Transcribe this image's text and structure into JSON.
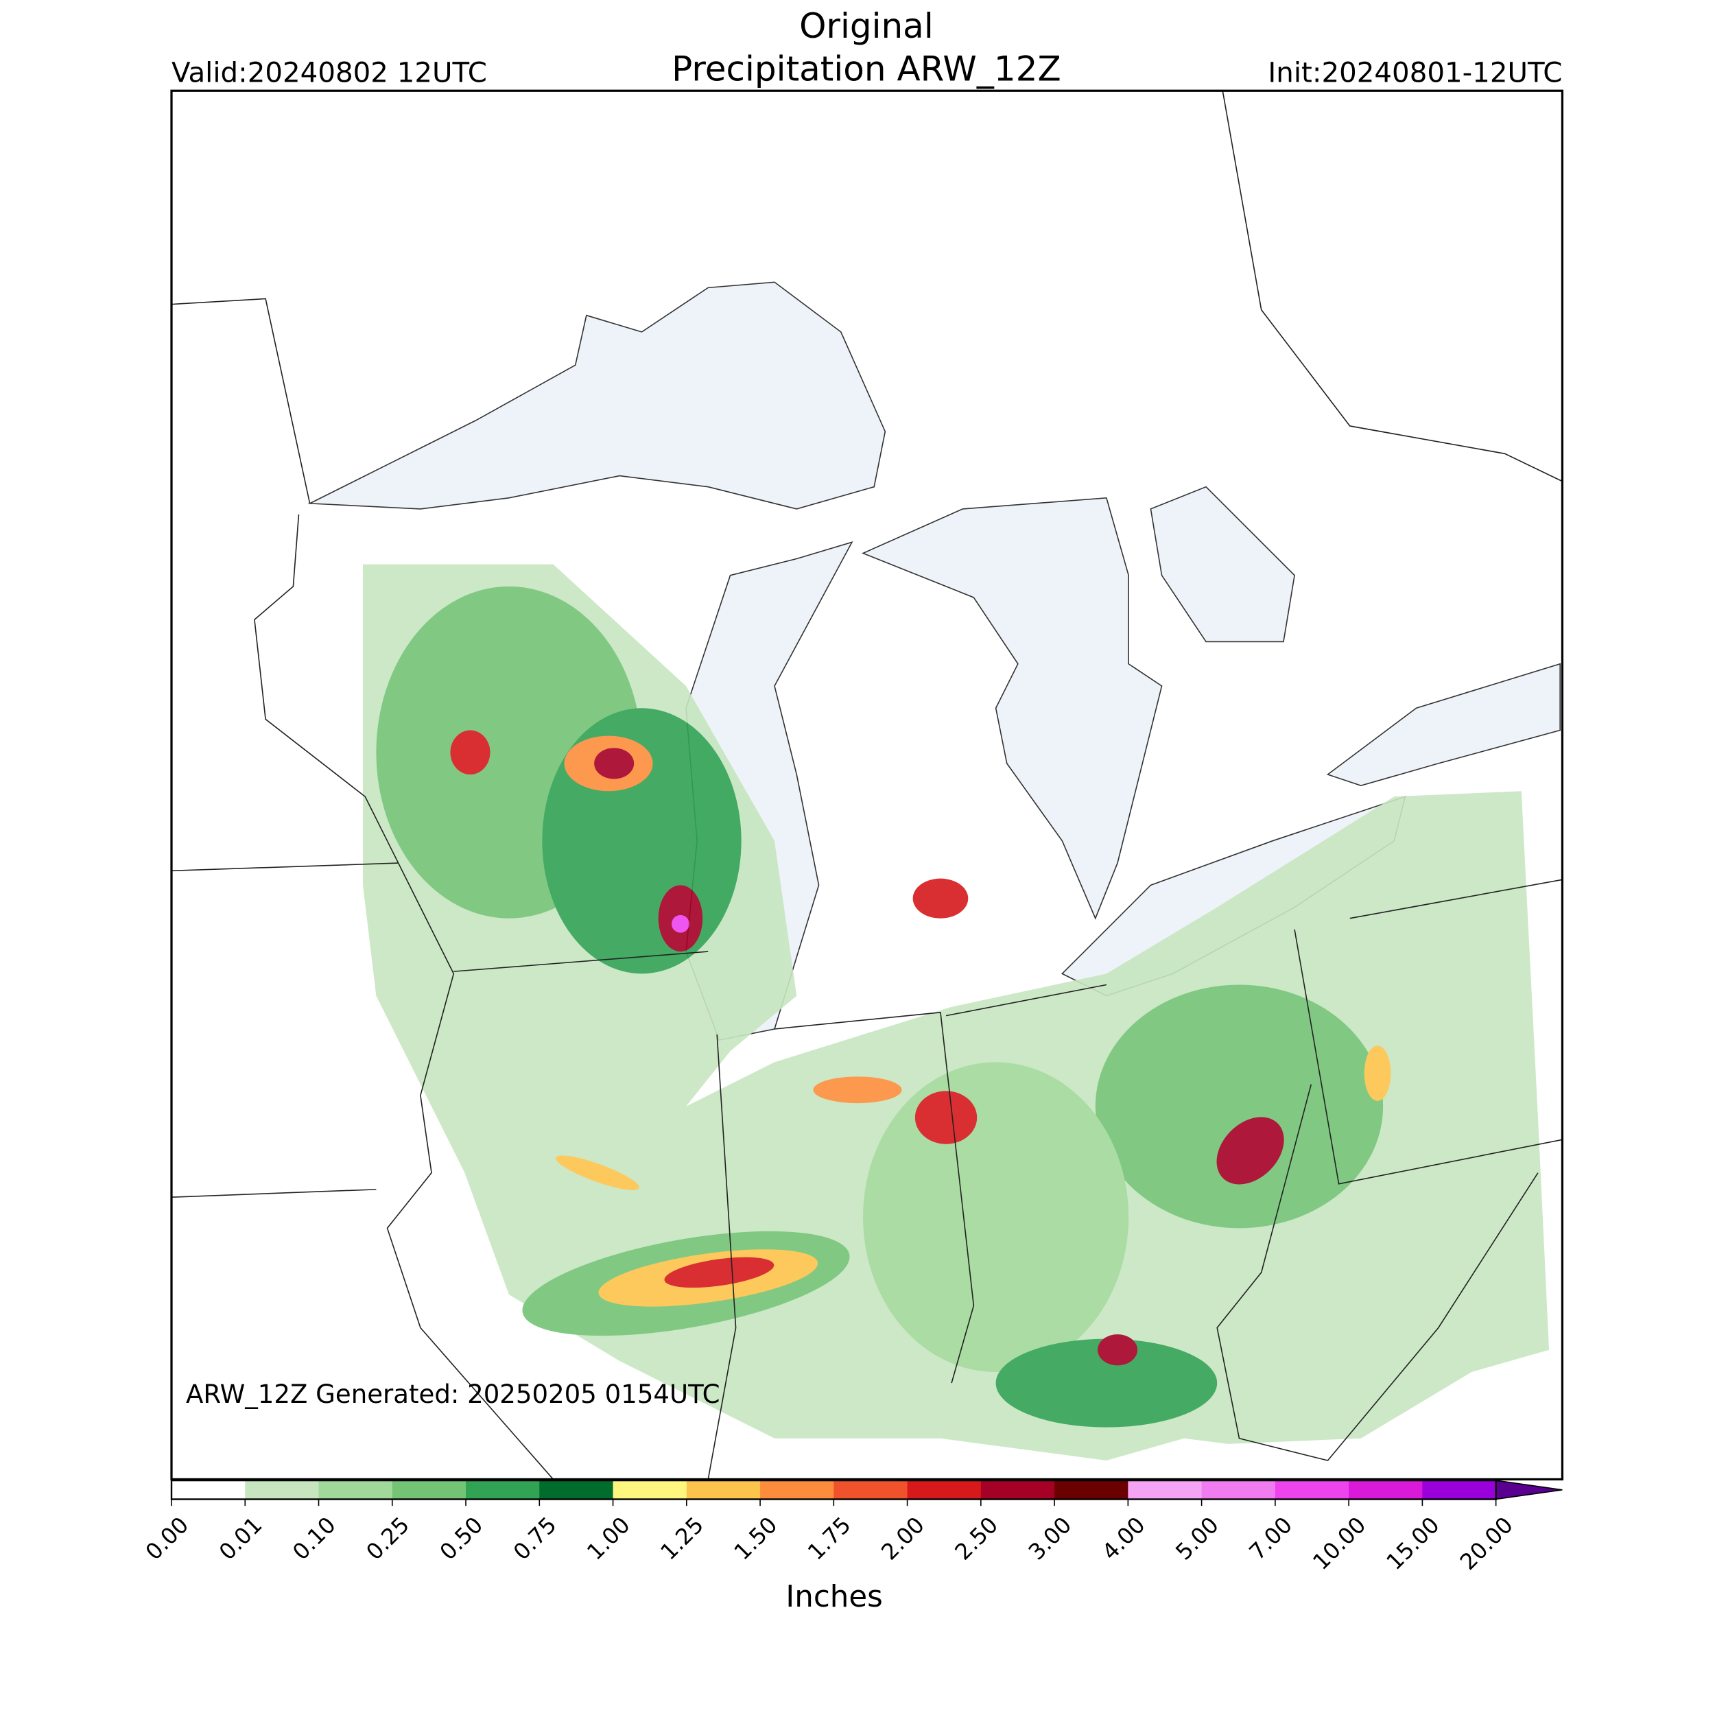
{
  "header": {
    "title": "Original",
    "subtitle": "Precipitation ARW_12Z",
    "valid": "Valid:20240802 12UTC",
    "init": "Init:20240801-12UTC"
  },
  "map": {
    "annotation": "ARW_12Z Generated: 20250205 0154UTC"
  },
  "colorbar": {
    "label": "Inches",
    "ticks": [
      {
        "value": 0,
        "label": "0.00"
      },
      {
        "value": 0.01,
        "label": "0.01"
      },
      {
        "value": 0.1,
        "label": "0.10"
      },
      {
        "value": 0.25,
        "label": "0.25"
      },
      {
        "value": 0.5,
        "label": "0.50"
      },
      {
        "value": 0.75,
        "label": "0.75"
      },
      {
        "value": 1,
        "label": "1.00"
      },
      {
        "value": 1.25,
        "label": "1.25"
      },
      {
        "value": 1.5,
        "label": "1.50"
      },
      {
        "value": 1.75,
        "label": "1.75"
      },
      {
        "value": 2,
        "label": "2.00"
      },
      {
        "value": 2.5,
        "label": "2.50"
      },
      {
        "value": 3,
        "label": "3.00"
      },
      {
        "value": 4,
        "label": "4.00"
      },
      {
        "value": 5,
        "label": "5.00"
      },
      {
        "value": 7,
        "label": "7.00"
      },
      {
        "value": 10,
        "label": "10.00"
      },
      {
        "value": 15,
        "label": "15.00"
      },
      {
        "value": 20,
        "label": "20.00"
      }
    ],
    "colors": [
      "#ffffff",
      "#c7e6c0",
      "#a1d99b",
      "#74c476",
      "#31a354",
      "#006d2c",
      "#fff680",
      "#fdc44b",
      "#fd8d3c",
      "#f0522c",
      "#d7191c",
      "#a50026",
      "#6b0000",
      "#f5a3f5",
      "#f07cf0",
      "#ee44ee",
      "#d91ad9",
      "#9a00d9"
    ],
    "extend_color": "#5a0090"
  }
}
